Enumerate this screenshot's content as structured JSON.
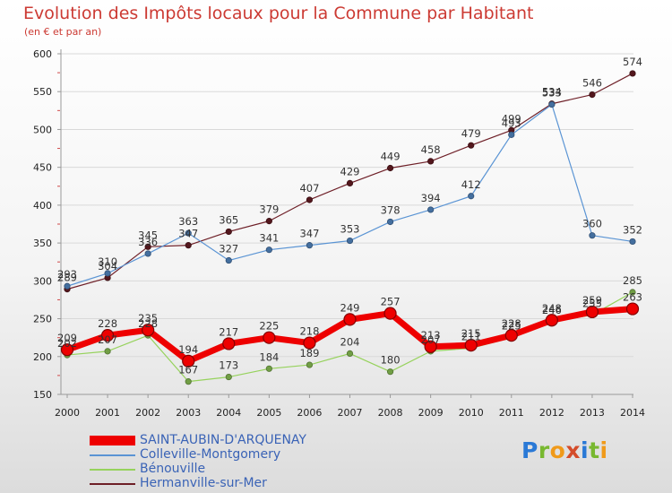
{
  "chart_data": {
    "type": "line",
    "title": "Evolution des Impôts locaux pour la Commune par Habitant",
    "subtitle": "(en € et par an)",
    "xlabel": "",
    "ylabel": "",
    "x": [
      "2000",
      "2001",
      "2002",
      "2003",
      "2004",
      "2005",
      "2006",
      "2007",
      "2008",
      "2009",
      "2010",
      "2011",
      "2012",
      "2013",
      "2014"
    ],
    "ylim": [
      150,
      600
    ],
    "yticks": [
      150,
      200,
      250,
      300,
      350,
      400,
      450,
      500,
      550,
      600
    ],
    "grid": true,
    "series": [
      {
        "name": "Hermanville-sur-Mer",
        "color": "#6e1f27",
        "width": 1.2,
        "values": [
          289,
          304,
          345,
          347,
          365,
          379,
          407,
          429,
          449,
          458,
          479,
          499,
          534,
          546,
          574
        ]
      },
      {
        "name": "Colleville-Montgomery",
        "color": "#5a94d4",
        "width": 1.2,
        "values": [
          293,
          310,
          336,
          363,
          327,
          341,
          347,
          353,
          378,
          394,
          412,
          493,
          533,
          360,
          352
        ]
      },
      {
        "name": "Bénouville",
        "color": "#96d25c",
        "width": 1.2,
        "values": [
          202,
          207,
          228,
          167,
          173,
          184,
          189,
          204,
          180,
          207,
          211,
          225,
          246,
          255,
          285
        ]
      },
      {
        "name": "SAINT-AUBIN-D'ARQUENAY",
        "color": "#ee0000",
        "width": 7,
        "values": [
          209,
          228,
          235,
          194,
          217,
          225,
          218,
          249,
          257,
          213,
          215,
          228,
          248,
          259,
          263
        ]
      }
    ],
    "legend": {
      "position": "bottom-left",
      "entries": [
        {
          "name": "SAINT-AUBIN-D'ARQUENAY",
          "color": "#ee0000"
        },
        {
          "name": "Colleville-Montgomery",
          "color": "#5a94d4"
        },
        {
          "name": "Bénouville",
          "color": "#96d25c"
        },
        {
          "name": "Hermanville-sur-Mer",
          "color": "#6e1f27"
        }
      ]
    }
  },
  "brand": {
    "letters": [
      "P",
      "r",
      "o",
      "x",
      "i",
      "t",
      "i"
    ]
  }
}
